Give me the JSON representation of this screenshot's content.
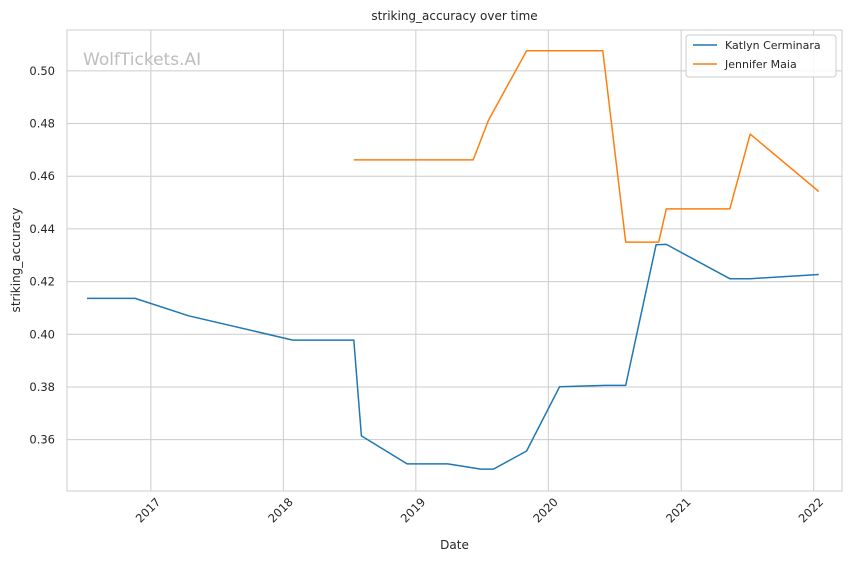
{
  "chart_data": {
    "type": "line",
    "title": "striking_accuracy over time",
    "xlabel": "Date",
    "ylabel": "striking_accuracy",
    "watermark": "WolfTickets.AI",
    "x_ticks": [
      "2017",
      "2018",
      "2019",
      "2020",
      "2021",
      "2022"
    ],
    "y_ticks": [
      "0.36",
      "0.38",
      "0.40",
      "0.42",
      "0.44",
      "0.46",
      "0.48",
      "0.50"
    ],
    "xlim": [
      "2016-05-15",
      "2022-03-20"
    ],
    "ylim": [
      0.3405,
      0.5155
    ],
    "grid": true,
    "legend_position": "top-right",
    "series": [
      {
        "name": "Katlyn Cerminara",
        "color": "#1f77b4",
        "points": [
          [
            "2016-07-09",
            0.4136
          ],
          [
            "2016-11-19",
            0.4136
          ],
          [
            "2017-04-15",
            0.407
          ],
          [
            "2018-01-27",
            0.3978
          ],
          [
            "2018-07-14",
            0.3978
          ],
          [
            "2018-08-04",
            0.3614
          ],
          [
            "2018-12-08",
            0.3508
          ],
          [
            "2019-03-30",
            0.3508
          ],
          [
            "2019-06-29",
            0.3488
          ],
          [
            "2019-08-03",
            0.3488
          ],
          [
            "2019-11-02",
            0.3557
          ],
          [
            "2020-02-01",
            0.3801
          ],
          [
            "2020-06-06",
            0.3806
          ],
          [
            "2020-08-01",
            0.3806
          ],
          [
            "2020-10-24",
            0.434
          ],
          [
            "2020-11-21",
            0.4341
          ],
          [
            "2021-05-15",
            0.4211
          ],
          [
            "2021-07-10",
            0.4211
          ],
          [
            "2022-01-15",
            0.4227
          ]
        ]
      },
      {
        "name": "Jennifer Maia",
        "color": "#ff7f0e",
        "points": [
          [
            "2018-07-14",
            0.4662
          ],
          [
            "2019-06-08",
            0.4662
          ],
          [
            "2019-07-20",
            0.4812
          ],
          [
            "2019-11-02",
            0.5076
          ],
          [
            "2020-05-30",
            0.5076
          ],
          [
            "2020-08-01",
            0.435
          ],
          [
            "2020-10-31",
            0.435
          ],
          [
            "2020-11-21",
            0.4476
          ],
          [
            "2021-05-15",
            0.4476
          ],
          [
            "2021-07-10",
            0.476
          ],
          [
            "2022-01-15",
            0.4542
          ]
        ]
      }
    ]
  }
}
